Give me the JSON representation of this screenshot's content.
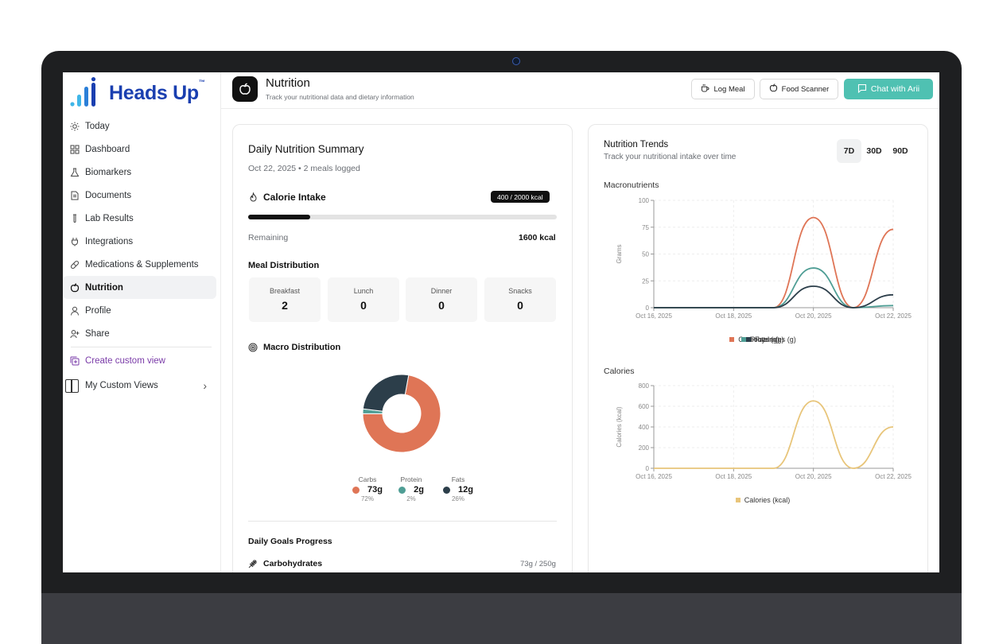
{
  "app": {
    "logo_text": "Heads Up",
    "logo_tm": "™"
  },
  "sidebar": {
    "items": [
      {
        "label": "Today",
        "icon": "sun-icon"
      },
      {
        "label": "Dashboard",
        "icon": "grid-icon"
      },
      {
        "label": "Biomarkers",
        "icon": "flask-icon"
      },
      {
        "label": "Documents",
        "icon": "document-icon"
      },
      {
        "label": "Lab Results",
        "icon": "test-tube-icon"
      },
      {
        "label": "Integrations",
        "icon": "plug-icon"
      },
      {
        "label": "Medications & Supplements",
        "icon": "pill-icon"
      },
      {
        "label": "Nutrition",
        "icon": "apple-icon",
        "active": true
      },
      {
        "label": "Profile",
        "icon": "user-icon"
      },
      {
        "label": "Share",
        "icon": "share-user-icon"
      }
    ],
    "create_custom_view": "Create custom view",
    "my_custom_views": "My Custom Views"
  },
  "header": {
    "title": "Nutrition",
    "subtitle": "Track your nutritional data and dietary information",
    "log_meal": "Log Meal",
    "food_scanner": "Food Scanner",
    "chat": "Chat with Arii"
  },
  "summary": {
    "title": "Daily Nutrition Summary",
    "date_line": "Oct 22, 2025 • 2 meals logged",
    "calorie_title": "Calorie Intake",
    "calorie_badge": "400 / 2000 kcal",
    "calorie_progress": 0.2,
    "remaining_label": "Remaining",
    "remaining_value": "1600 kcal",
    "meal_title": "Meal Distribution",
    "meals": [
      {
        "label": "Breakfast",
        "value": "2"
      },
      {
        "label": "Lunch",
        "value": "0"
      },
      {
        "label": "Dinner",
        "value": "0"
      },
      {
        "label": "Snacks",
        "value": "0"
      }
    ],
    "macro_title": "Macro Distribution",
    "macros": [
      {
        "name": "Carbs",
        "value": "73g",
        "pct": "72%",
        "percent": 72,
        "color": "#df7556"
      },
      {
        "name": "Protein",
        "value": "2g",
        "pct": "2%",
        "percent": 2,
        "color": "#4f9e95"
      },
      {
        "name": "Fats",
        "value": "12g",
        "pct": "26%",
        "percent": 26,
        "color": "#2c3e4a"
      }
    ],
    "goals_title": "Daily Goals Progress",
    "goal_carbs_label": "Carbohydrates",
    "goal_carbs_value": "73g / 250g"
  },
  "trends": {
    "title": "Nutrition Trends",
    "subtitle": "Track your nutritional intake over time",
    "ranges": [
      "7D",
      "30D",
      "90D"
    ],
    "active_range": "7D",
    "macro_title": "Macronutrients",
    "calories_title": "Calories"
  },
  "chart_data": [
    {
      "type": "line",
      "title": "Macronutrients",
      "ylabel": "Grams",
      "xlabel": "",
      "x": [
        "Oct 16, 2025",
        "Oct 17, 2025",
        "Oct 18, 2025",
        "Oct 19, 2025",
        "Oct 20, 2025",
        "Oct 21, 2025",
        "Oct 22, 2025"
      ],
      "x_ticks": [
        "Oct 16, 2025",
        "Oct 18, 2025",
        "Oct 20, 2025",
        "Oct 22, 2025"
      ],
      "ylim": [
        0,
        100
      ],
      "y_ticks": [
        0,
        25,
        50,
        75,
        100
      ],
      "grid": true,
      "legend": "bottom",
      "series": [
        {
          "name": "Carbohydrates (g)",
          "color": "#df7556",
          "values": [
            0,
            0,
            0,
            0,
            84,
            0,
            73
          ]
        },
        {
          "name": "Protein (g)",
          "color": "#4f9e95",
          "values": [
            0,
            0,
            0,
            0,
            37,
            0,
            2
          ]
        },
        {
          "name": "Fats (g)",
          "color": "#2c3e4a",
          "values": [
            0,
            0,
            0,
            0,
            20,
            0,
            12
          ]
        }
      ]
    },
    {
      "type": "line",
      "title": "Calories",
      "ylabel": "Calories (kcal)",
      "xlabel": "",
      "x": [
        "Oct 16, 2025",
        "Oct 17, 2025",
        "Oct 18, 2025",
        "Oct 19, 2025",
        "Oct 20, 2025",
        "Oct 21, 2025",
        "Oct 22, 2025"
      ],
      "x_ticks": [
        "Oct 16, 2025",
        "Oct 18, 2025",
        "Oct 20, 2025",
        "Oct 22, 2025"
      ],
      "ylim": [
        0,
        800
      ],
      "y_ticks": [
        0,
        200,
        400,
        600,
        800
      ],
      "grid": true,
      "legend": "bottom",
      "series": [
        {
          "name": "Calories (kcal)",
          "color": "#e8c57a",
          "values": [
            0,
            0,
            0,
            0,
            652,
            0,
            400
          ]
        }
      ]
    }
  ]
}
